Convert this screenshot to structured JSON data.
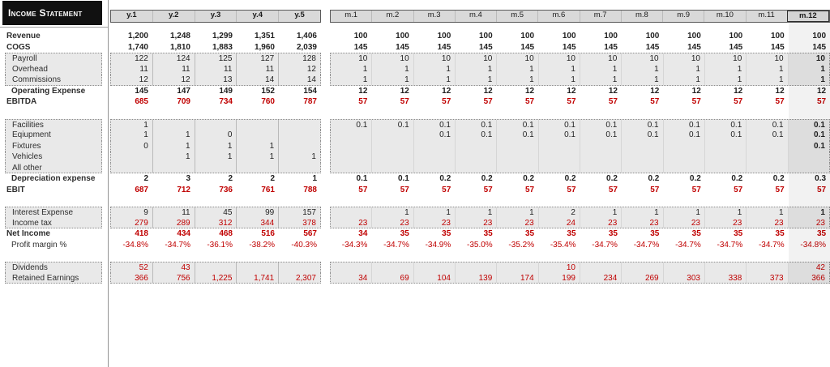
{
  "title": "Income Statement",
  "colors": {
    "negative_red": "#C00000",
    "box_fill": "#E9E9E9",
    "header_fill": "#D9D9D9",
    "title_bg": "#111111",
    "text_dark": "#1F1F1F"
  },
  "columns": {
    "year": [
      "y.1",
      "y.2",
      "y.3",
      "y.4",
      "y.5"
    ],
    "month": [
      "m.1",
      "m.2",
      "m.3",
      "m.4",
      "m.5",
      "m.6",
      "m.7",
      "m.8",
      "m.9",
      "m.10",
      "m.11",
      "m.12"
    ]
  },
  "rows": [
    {
      "label": "Revenue",
      "bold": true,
      "year": [
        "1,200",
        "1,248",
        "1,299",
        "1,351",
        "1,406"
      ],
      "month": [
        "100",
        "100",
        "100",
        "100",
        "100",
        "100",
        "100",
        "100",
        "100",
        "100",
        "100",
        "100"
      ]
    },
    {
      "label": "COGS",
      "bold": true,
      "year": [
        "1,740",
        "1,810",
        "1,883",
        "1,960",
        "2,039"
      ],
      "month": [
        "145",
        "145",
        "145",
        "145",
        "145",
        "145",
        "145",
        "145",
        "145",
        "145",
        "145",
        "145"
      ]
    },
    {
      "label": "Payroll",
      "boxed": true,
      "year": [
        "122",
        "124",
        "125",
        "127",
        "128"
      ],
      "month": [
        "10",
        "10",
        "10",
        "10",
        "10",
        "10",
        "10",
        "10",
        "10",
        "10",
        "10",
        "10"
      ]
    },
    {
      "label": "Overhead",
      "boxed": true,
      "year": [
        "11",
        "11",
        "11",
        "11",
        "12"
      ],
      "month": [
        "1",
        "1",
        "1",
        "1",
        "1",
        "1",
        "1",
        "1",
        "1",
        "1",
        "1",
        "1"
      ]
    },
    {
      "label": "Commissions",
      "boxed": true,
      "year": [
        "12",
        "12",
        "13",
        "14",
        "14"
      ],
      "month": [
        "1",
        "1",
        "1",
        "1",
        "1",
        "1",
        "1",
        "1",
        "1",
        "1",
        "1",
        "1"
      ]
    },
    {
      "label": "Operating Expense",
      "bold": true,
      "indent": true,
      "year": [
        "145",
        "147",
        "149",
        "152",
        "154"
      ],
      "month": [
        "12",
        "12",
        "12",
        "12",
        "12",
        "12",
        "12",
        "12",
        "12",
        "12",
        "12",
        "12"
      ]
    },
    {
      "label": "EBITDA",
      "bold": true,
      "red": true,
      "year": [
        "685",
        "709",
        "734",
        "760",
        "787"
      ],
      "month": [
        "57",
        "57",
        "57",
        "57",
        "57",
        "57",
        "57",
        "57",
        "57",
        "57",
        "57",
        "57"
      ]
    },
    {
      "label": "Facilities",
      "boxed": true,
      "gap_before": true,
      "year": [
        "1",
        "",
        "",
        "",
        ""
      ],
      "month": [
        "0.1",
        "0.1",
        "0.1",
        "0.1",
        "0.1",
        "0.1",
        "0.1",
        "0.1",
        "0.1",
        "0.1",
        "0.1",
        "0.1"
      ]
    },
    {
      "label": "Eqiupment",
      "boxed": true,
      "year": [
        "1",
        "1",
        "0",
        "",
        ""
      ],
      "month": [
        "",
        "",
        "0.1",
        "0.1",
        "0.1",
        "0.1",
        "0.1",
        "0.1",
        "0.1",
        "0.1",
        "0.1",
        "0.1"
      ]
    },
    {
      "label": "Fixtures",
      "boxed": true,
      "year": [
        "0",
        "1",
        "1",
        "1",
        ""
      ],
      "month": [
        "",
        "",
        "",
        "",
        "",
        "",
        "",
        "",
        "",
        "",
        "",
        "0.1"
      ]
    },
    {
      "label": "Vehicles",
      "boxed": true,
      "year": [
        "",
        "1",
        "1",
        "1",
        "1"
      ],
      "month": [
        "",
        "",
        "",
        "",
        "",
        "",
        "",
        "",
        "",
        "",
        "",
        ""
      ]
    },
    {
      "label": "All other",
      "boxed": true,
      "year": [
        "",
        "",
        "",
        "",
        ""
      ],
      "month": [
        "",
        "",
        "",
        "",
        "",
        "",
        "",
        "",
        "",
        "",
        "",
        ""
      ]
    },
    {
      "label": "Depreciation expense",
      "bold": true,
      "indent": true,
      "year": [
        "2",
        "3",
        "2",
        "2",
        "1"
      ],
      "month": [
        "0.1",
        "0.1",
        "0.2",
        "0.2",
        "0.2",
        "0.2",
        "0.2",
        "0.2",
        "0.2",
        "0.2",
        "0.2",
        "0.3"
      ]
    },
    {
      "label": "EBIT",
      "bold": true,
      "red": true,
      "year": [
        "687",
        "712",
        "736",
        "761",
        "788"
      ],
      "month": [
        "57",
        "57",
        "57",
        "57",
        "57",
        "57",
        "57",
        "57",
        "57",
        "57",
        "57",
        "57"
      ]
    },
    {
      "label": "Interest Expense",
      "boxed": true,
      "gap_before": true,
      "year": [
        "9",
        "11",
        "45",
        "99",
        "157"
      ],
      "month": [
        "",
        "1",
        "1",
        "1",
        "1",
        "2",
        "1",
        "1",
        "1",
        "1",
        "1",
        "1"
      ]
    },
    {
      "label": "Income tax",
      "boxed": true,
      "red": true,
      "year": [
        "279",
        "289",
        "312",
        "344",
        "378"
      ],
      "month": [
        "23",
        "23",
        "23",
        "23",
        "23",
        "24",
        "23",
        "23",
        "23",
        "23",
        "23",
        "23"
      ]
    },
    {
      "label": "Net Income",
      "bold": true,
      "red": true,
      "year": [
        "418",
        "434",
        "468",
        "516",
        "567"
      ],
      "month": [
        "34",
        "35",
        "35",
        "35",
        "35",
        "35",
        "35",
        "35",
        "35",
        "35",
        "35",
        "35"
      ]
    },
    {
      "label": "Profit margin %",
      "indent": true,
      "red": true,
      "year": [
        "-34.8%",
        "-34.7%",
        "-36.1%",
        "-38.2%",
        "-40.3%"
      ],
      "month": [
        "-34.3%",
        "-34.7%",
        "-34.9%",
        "-35.0%",
        "-35.2%",
        "-35.4%",
        "-34.7%",
        "-34.7%",
        "-34.7%",
        "-34.7%",
        "-34.7%",
        "-34.8%"
      ]
    },
    {
      "label": "Dividends",
      "boxed": true,
      "red": true,
      "gap_before": true,
      "year": [
        "52",
        "43",
        "",
        "",
        ""
      ],
      "month": [
        "",
        "",
        "",
        "",
        "",
        "10",
        "",
        "",
        "",
        "",
        "",
        "42"
      ]
    },
    {
      "label": "Retained Earnings",
      "boxed": true,
      "red": true,
      "year": [
        "366",
        "756",
        "1,225",
        "1,741",
        "2,307"
      ],
      "month": [
        "34",
        "69",
        "104",
        "139",
        "174",
        "199",
        "234",
        "269",
        "303",
        "338",
        "373",
        "366"
      ]
    }
  ]
}
